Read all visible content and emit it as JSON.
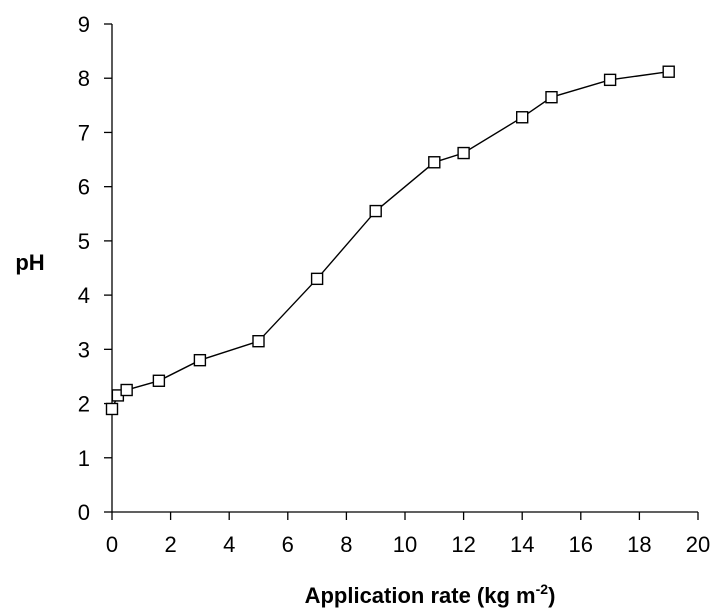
{
  "chart_data": {
    "type": "line",
    "title": "",
    "xlabel": "Application rate (kg m",
    "xlabel_superscript": "-2",
    "xlabel_suffix": ")",
    "ylabel": "pH",
    "xlim": [
      0,
      20
    ],
    "ylim": [
      0,
      9
    ],
    "x_ticks": [
      "0",
      "2",
      "4",
      "6",
      "8",
      "10",
      "12",
      "14",
      "16",
      "18",
      "20"
    ],
    "y_ticks": [
      "0",
      "1",
      "2",
      "3",
      "4",
      "5",
      "6",
      "7",
      "8",
      "9"
    ],
    "grid": false,
    "legend": "none",
    "marker": "open-square",
    "line_color": "#000000",
    "series": [
      {
        "x": [
          0,
          0.2,
          0.5,
          1.6,
          3,
          5,
          7,
          9,
          11,
          12,
          14,
          15,
          17,
          19
        ],
        "y": [
          1.9,
          2.15,
          2.25,
          2.42,
          2.8,
          3.15,
          4.3,
          5.55,
          6.45,
          6.62,
          7.28,
          7.65,
          7.97,
          8.12
        ]
      }
    ]
  }
}
